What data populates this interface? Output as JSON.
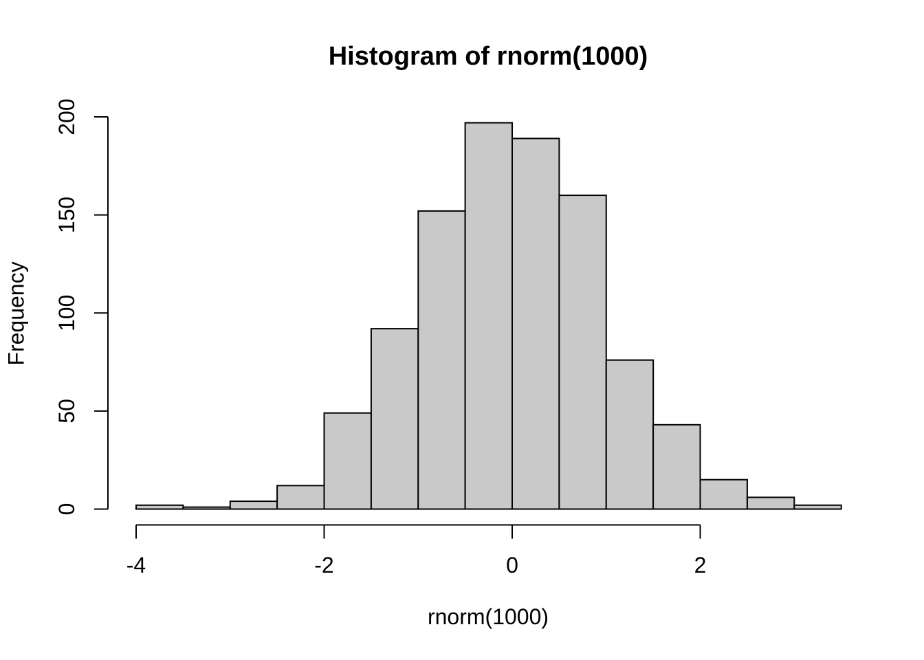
{
  "chart_data": {
    "type": "bar",
    "subtype": "histogram",
    "title": "Histogram of rnorm(1000)",
    "xlabel": "rnorm(1000)",
    "ylabel": "Frequency",
    "bin_edges": [
      -4,
      -3.5,
      -3,
      -2.5,
      -2,
      -1.5,
      -1,
      -0.5,
      0,
      0.5,
      1,
      1.5,
      2,
      2.5,
      3,
      3.5
    ],
    "counts": [
      2,
      1,
      4,
      12,
      49,
      92,
      152,
      197,
      189,
      160,
      76,
      43,
      15,
      6,
      2
    ],
    "total_n": 1000,
    "x_ticks": [
      -4,
      -2,
      0,
      2
    ],
    "y_ticks": [
      0,
      50,
      100,
      150,
      200
    ],
    "xlim": [
      -4,
      3.5
    ],
    "ylim": [
      0,
      200
    ],
    "grid": false,
    "legend": null,
    "colors": {
      "bar_fill": "#C9C9C9",
      "bar_stroke": "#000000",
      "axis": "#000000",
      "text": "#000000",
      "background": "#FFFFFF"
    }
  }
}
